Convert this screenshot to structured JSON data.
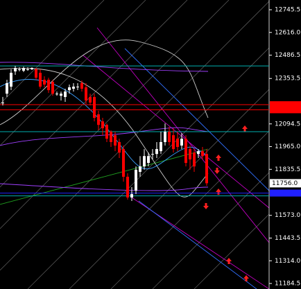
{
  "chart_data": {
    "type": "candlestick",
    "ylim": [
      11153,
      12801
    ],
    "yticks": [
      12745.5,
      {
        "value": 12616,
        "label": "12616.0"
      },
      12486.5,
      12353.5,
      12094.5,
      {
        "value": 11965,
        "label": "11965.0"
      },
      11835.5,
      {
        "value": 11573,
        "label": "11573.0"
      },
      11443.5,
      {
        "value": 11314,
        "label": "11314.0"
      },
      11184.5
    ],
    "current_price": {
      "value": 11756,
      "label": "11756.0"
    },
    "up_color": "#ffffff",
    "down_color": "#ff0000",
    "open": [
      12216,
      12267,
      12307,
      12394,
      12406,
      12398,
      12406,
      12406,
      12406,
      12386,
      12346,
      12346,
      12334,
      12267,
      12255,
      12248,
      12287,
      12295,
      12307,
      12327,
      12303,
      12248,
      12248,
      12149,
      12109,
      12089,
      12050,
      12030,
      11991,
      11951,
      11793,
      11675,
      11714,
      11821,
      11852,
      11872,
      11923,
      11923,
      11939,
      11991,
      12050,
      12030,
      12010,
      11971,
      12010,
      11951,
      11931,
      11923,
      11939,
      11923
    ],
    "high": [
      12248,
      12346,
      12406,
      12425,
      12417,
      12421,
      12417,
      12417,
      12413,
      12406,
      12366,
      12358,
      12346,
      12279,
      12279,
      12295,
      12319,
      12327,
      12327,
      12342,
      12327,
      12267,
      12267,
      12169,
      12129,
      12097,
      12058,
      12050,
      12010,
      11971,
      11813,
      11734,
      11852,
      11911,
      11951,
      11931,
      11951,
      11991,
      12050,
      12097,
      12078,
      12070,
      12050,
      12042,
      12030,
      11971,
      11951,
      11951,
      11963,
      11951
    ],
    "low": [
      12200,
      12248,
      12287,
      12374,
      12394,
      12390,
      12398,
      12402,
      12346,
      12295,
      12303,
      12271,
      12255,
      12255,
      12228,
      12220,
      12267,
      12279,
      12287,
      12279,
      12208,
      12200,
      12109,
      12058,
      12030,
      11991,
      11963,
      11939,
      11900,
      11765,
      11663,
      11655,
      11694,
      11793,
      11833,
      11852,
      11892,
      11900,
      11923,
      11971,
      11971,
      11931,
      11939,
      11951,
      11852,
      11833,
      11821,
      11900,
      11892,
      11742
    ],
    "close": [
      12216,
      12327,
      12386,
      12413,
      12406,
      12413,
      12406,
      12413,
      12358,
      12307,
      12319,
      12287,
      12267,
      12267,
      12267,
      12279,
      12303,
      12307,
      12307,
      12295,
      12228,
      12216,
      12129,
      12089,
      12070,
      12010,
      11991,
      11971,
      11931,
      11793,
      11675,
      11694,
      11833,
      11852,
      11911,
      11911,
      11923,
      11951,
      11991,
      12050,
      11991,
      11951,
      11963,
      12010,
      11872,
      11892,
      11852,
      11939,
      11911,
      11756
    ],
    "levels": [
      {
        "value": 12425,
        "color": "#00b0b0"
      },
      {
        "value": 12204,
        "color": "#ff0000"
      },
      {
        "value": 12175,
        "color": "#ff0000"
      },
      {
        "value": 12050,
        "color": "#00b0b0"
      },
      {
        "value": 11700,
        "color": "#2020ff"
      },
      {
        "value": 11684,
        "color": "#00b0b0"
      }
    ]
  }
}
